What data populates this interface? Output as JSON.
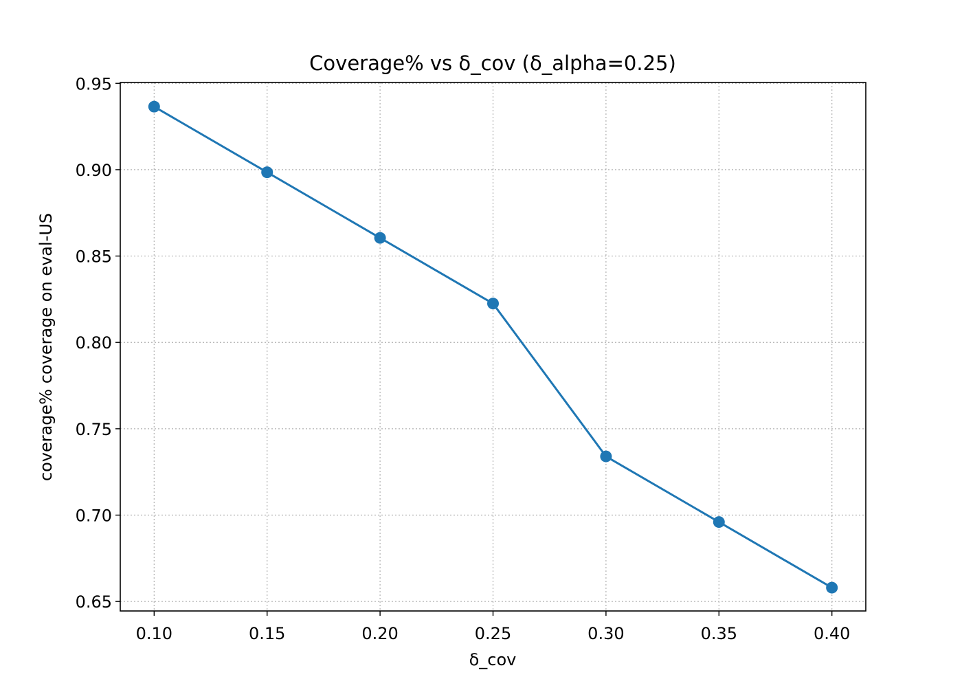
{
  "chart_data": {
    "type": "line",
    "title": "Coverage% vs δ_cov (δ_alpha=0.25)",
    "xlabel": "δ_cov",
    "ylabel": "coverage% coverage on eval-US",
    "x": [
      0.1,
      0.15,
      0.2,
      0.25,
      0.3,
      0.35,
      0.4
    ],
    "series": [
      {
        "values": [
          0.9365,
          0.8985,
          0.8605,
          0.8225,
          0.734,
          0.696,
          0.658
        ],
        "color": "#1f77b4",
        "marker": "circle"
      }
    ],
    "xlim": [
      0.085,
      0.415
    ],
    "ylim": [
      0.6445,
      0.9505
    ],
    "xticks": [
      0.1,
      0.15,
      0.2,
      0.25,
      0.3,
      0.35,
      0.4
    ],
    "xtick_labels": [
      "0.10",
      "0.15",
      "0.20",
      "0.25",
      "0.30",
      "0.35",
      "0.40"
    ],
    "yticks": [
      0.65,
      0.7,
      0.75,
      0.8,
      0.85,
      0.9,
      0.95
    ],
    "ytick_labels": [
      "0.65",
      "0.70",
      "0.75",
      "0.80",
      "0.85",
      "0.90",
      "0.95"
    ],
    "grid": true,
    "grid_style": "dotted",
    "grid_color": "#b0b0b0"
  }
}
